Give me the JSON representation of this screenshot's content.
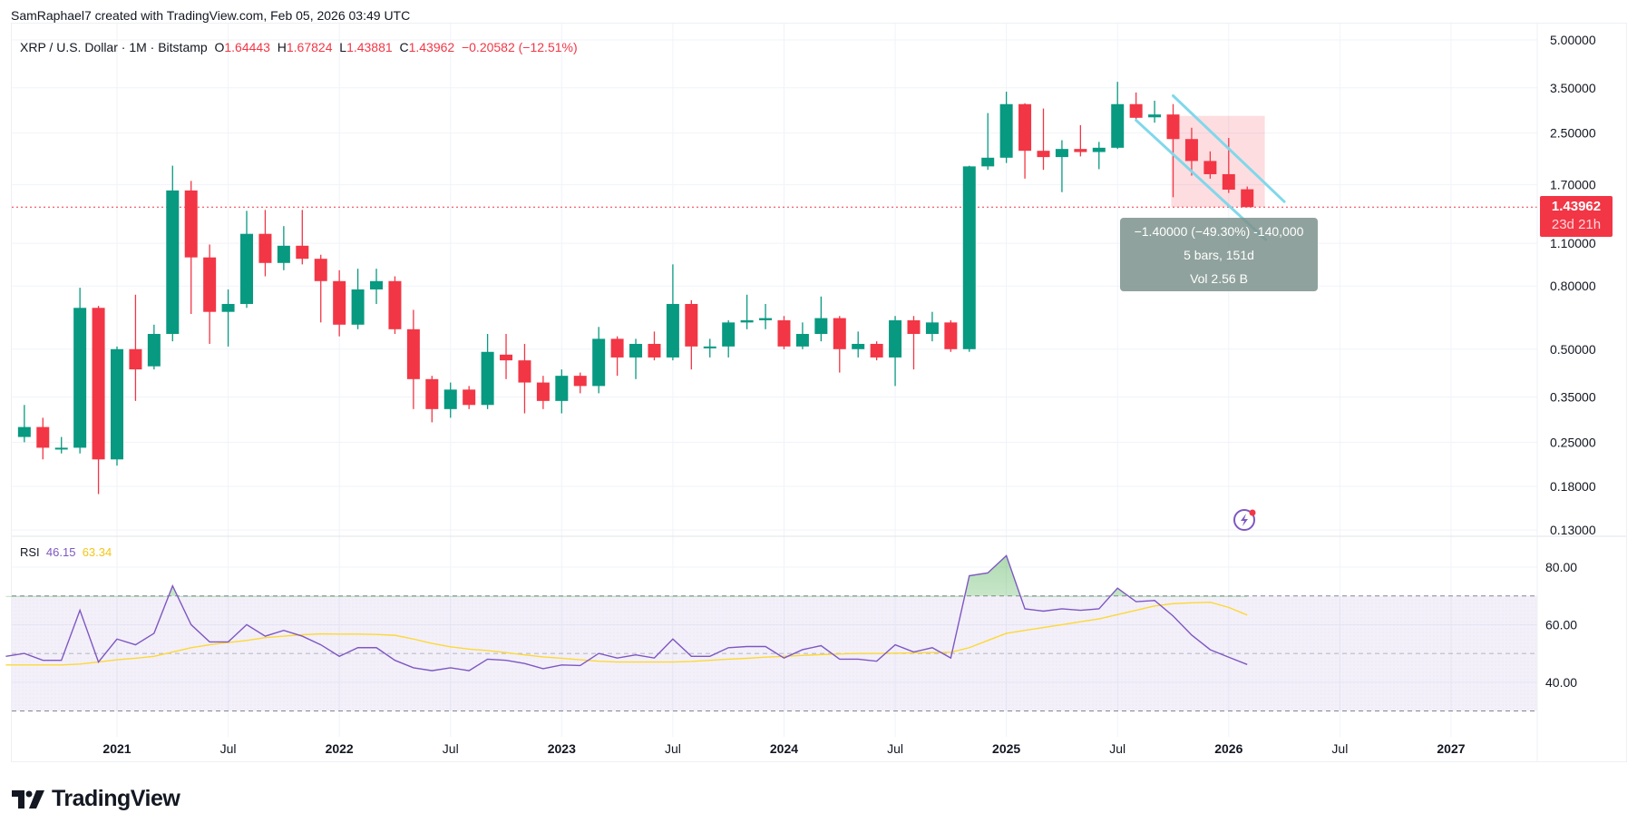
{
  "credit": "SamRaphael7 created with TradingView.com, Feb 05, 2026 03:49 UTC",
  "legend": {
    "symbol": "XRP / U.S. Dollar · 1M · Bitstamp",
    "o_label": "O",
    "o": "1.64443",
    "h_label": "H",
    "h": "1.67824",
    "l_label": "L",
    "l": "1.43881",
    "c_label": "C",
    "c": "1.43962",
    "change": "−0.20582 (−12.51%)"
  },
  "price_tag": {
    "price": "1.43962",
    "countdown": "23d 21h"
  },
  "measure": {
    "line1": "−1.40000 (−49.30%) -140,000",
    "line2": "5 bars, 151d",
    "line3": "Vol 2.56 B"
  },
  "rsi_legend": {
    "label": "RSI",
    "rsi": "46.15",
    "ma": "63.34"
  },
  "logo": {
    "text": "TradingView"
  },
  "colors": {
    "up": "#089981",
    "down": "#f23645",
    "rsi": "#7e57c2",
    "rsi_ma": "#fdd835",
    "channel": "#80d8ea",
    "measure_box": "#f23645"
  },
  "chart_data": [
    {
      "type": "candlestick",
      "title": "XRP / U.S. Dollar · 1M · Bitstamp",
      "y_scale": "log",
      "y_ticks": [
        "5.00000",
        "3.50000",
        "2.50000",
        "1.70000",
        "1.10000",
        "0.80000",
        "0.50000",
        "0.35000",
        "0.25000",
        "0.18000",
        "0.13000"
      ],
      "y_tick_values": [
        5.0,
        3.5,
        2.5,
        1.7,
        1.1,
        0.8,
        0.5,
        0.35,
        0.25,
        0.18,
        0.13
      ],
      "x_ticks": [
        "2021",
        "Jul",
        "2022",
        "Jul",
        "2023",
        "Jul",
        "2024",
        "Jul",
        "2025",
        "Jul",
        "2026",
        "Jul",
        "2027"
      ],
      "x_ticks_dates": [
        "2021-01",
        "2021-07",
        "2022-01",
        "2022-07",
        "2023-01",
        "2023-07",
        "2024-01",
        "2024-07",
        "2025-01",
        "2025-07",
        "2026-01",
        "2026-07",
        "2027-01"
      ],
      "grid": true,
      "current_price": 1.43962,
      "start_month": "2020-08",
      "ohlc": [
        [
          0.26,
          0.33,
          0.25,
          0.28
        ],
        [
          0.28,
          0.3,
          0.22,
          0.24
        ],
        [
          0.24,
          0.26,
          0.23,
          0.24
        ],
        [
          0.24,
          0.79,
          0.23,
          0.68
        ],
        [
          0.68,
          0.69,
          0.17,
          0.22
        ],
        [
          0.22,
          0.51,
          0.21,
          0.5
        ],
        [
          0.5,
          0.75,
          0.34,
          0.43
        ],
        [
          0.44,
          0.6,
          0.43,
          0.56
        ],
        [
          0.56,
          1.96,
          0.53,
          1.63
        ],
        [
          1.63,
          1.75,
          0.65,
          0.99
        ],
        [
          0.99,
          1.09,
          0.52,
          0.66
        ],
        [
          0.66,
          0.78,
          0.51,
          0.7
        ],
        [
          0.7,
          1.4,
          0.68,
          1.18
        ],
        [
          1.18,
          1.41,
          0.86,
          0.95
        ],
        [
          0.95,
          1.25,
          0.9,
          1.08
        ],
        [
          1.08,
          1.41,
          0.94,
          0.98
        ],
        [
          0.98,
          1.01,
          0.61,
          0.83
        ],
        [
          0.83,
          0.9,
          0.55,
          0.6
        ],
        [
          0.6,
          0.91,
          0.58,
          0.78
        ],
        [
          0.78,
          0.91,
          0.7,
          0.83
        ],
        [
          0.83,
          0.86,
          0.56,
          0.58
        ],
        [
          0.58,
          0.67,
          0.32,
          0.4
        ],
        [
          0.4,
          0.41,
          0.29,
          0.32
        ],
        [
          0.32,
          0.39,
          0.3,
          0.37
        ],
        [
          0.37,
          0.38,
          0.32,
          0.33
        ],
        [
          0.33,
          0.56,
          0.32,
          0.49
        ],
        [
          0.48,
          0.56,
          0.4,
          0.46
        ],
        [
          0.46,
          0.52,
          0.31,
          0.39
        ],
        [
          0.39,
          0.41,
          0.32,
          0.34
        ],
        [
          0.34,
          0.43,
          0.31,
          0.41
        ],
        [
          0.41,
          0.42,
          0.36,
          0.38
        ],
        [
          0.38,
          0.59,
          0.36,
          0.54
        ],
        [
          0.54,
          0.55,
          0.41,
          0.47
        ],
        [
          0.47,
          0.54,
          0.4,
          0.52
        ],
        [
          0.52,
          0.57,
          0.46,
          0.47
        ],
        [
          0.47,
          0.94,
          0.46,
          0.7
        ],
        [
          0.7,
          0.72,
          0.43,
          0.51
        ],
        [
          0.51,
          0.54,
          0.47,
          0.51
        ],
        [
          0.51,
          0.62,
          0.47,
          0.61
        ],
        [
          0.61,
          0.75,
          0.58,
          0.62
        ],
        [
          0.62,
          0.7,
          0.58,
          0.63
        ],
        [
          0.62,
          0.64,
          0.5,
          0.51
        ],
        [
          0.51,
          0.61,
          0.5,
          0.56
        ],
        [
          0.56,
          0.74,
          0.53,
          0.63
        ],
        [
          0.63,
          0.64,
          0.42,
          0.5
        ],
        [
          0.5,
          0.57,
          0.47,
          0.52
        ],
        [
          0.52,
          0.53,
          0.46,
          0.47
        ],
        [
          0.47,
          0.64,
          0.38,
          0.62
        ],
        [
          0.62,
          0.64,
          0.43,
          0.56
        ],
        [
          0.56,
          0.66,
          0.53,
          0.61
        ],
        [
          0.61,
          0.62,
          0.49,
          0.5
        ],
        [
          0.5,
          1.96,
          0.49,
          1.95
        ],
        [
          1.95,
          2.9,
          1.9,
          2.08
        ],
        [
          2.08,
          3.4,
          2.0,
          3.1
        ],
        [
          3.1,
          3.12,
          1.78,
          2.19
        ],
        [
          2.19,
          3.0,
          1.9,
          2.09
        ],
        [
          2.09,
          2.37,
          1.61,
          2.22
        ],
        [
          2.22,
          2.65,
          2.1,
          2.17
        ],
        [
          2.17,
          2.34,
          1.91,
          2.24
        ],
        [
          2.24,
          3.66,
          2.22,
          3.1
        ],
        [
          3.1,
          3.38,
          2.74,
          2.8
        ],
        [
          2.81,
          3.18,
          2.7,
          2.87
        ],
        [
          2.87,
          3.1,
          1.55,
          2.39
        ],
        [
          2.39,
          2.6,
          1.82,
          2.03
        ],
        [
          2.03,
          2.18,
          1.78,
          1.84
        ],
        [
          1.84,
          2.41,
          1.6,
          1.64
        ],
        [
          1.64443,
          1.67824,
          1.43881,
          1.43962
        ]
      ],
      "annotations": {
        "measure_range": {
          "from_month": "2025-10",
          "bars": 5,
          "price_from": 2.84,
          "price_to": 1.44
        },
        "channel_upper": [
          [
            "2025-10",
            3.3
          ],
          [
            "2026-04",
            1.5
          ]
        ],
        "channel_lower": [
          [
            "2025-08",
            2.75
          ],
          [
            "2026-03",
            1.13
          ]
        ]
      }
    },
    {
      "type": "line",
      "title": "RSI",
      "y_ticks": [
        "80.00",
        "60.00",
        "40.00"
      ],
      "y_tick_values": [
        80,
        60,
        40
      ],
      "bands": [
        70,
        50,
        30
      ],
      "start_month": "2020-07",
      "series": [
        {
          "name": "RSI",
          "color": "#7e57c2",
          "values": [
            49,
            50,
            47.6,
            47.6,
            65,
            47,
            55,
            53,
            57,
            73.5,
            60,
            54,
            54,
            60,
            56,
            58,
            56,
            53,
            49,
            52,
            52,
            47.6,
            45,
            44,
            45,
            44,
            48,
            47.6,
            46.5,
            44.7,
            46,
            45.8,
            50,
            48.4,
            49.5,
            48.4,
            55,
            49,
            49,
            52,
            52.4,
            52.4,
            48.4,
            51.3,
            52.7,
            48,
            48,
            47.3,
            53,
            50.5,
            52,
            48.4,
            77,
            78,
            84,
            65.5,
            64.7,
            65.5,
            65,
            65.5,
            72.7,
            68,
            68.4,
            63,
            56.4,
            51.3,
            48.7,
            46.15
          ]
        },
        {
          "name": "MA",
          "color": "#fdd835",
          "values": [
            46,
            46,
            46,
            46,
            46.3,
            47,
            47.8,
            48.3,
            49,
            50.5,
            52,
            53,
            53.8,
            54.5,
            55.5,
            56,
            56.5,
            56.8,
            56.7,
            56.7,
            56.6,
            56.3,
            55,
            53.5,
            52.3,
            51.5,
            51,
            50.3,
            49.5,
            48.8,
            48.3,
            47.8,
            47.3,
            47,
            47,
            47,
            47,
            47.2,
            47.6,
            48,
            48.3,
            48.7,
            49,
            49.3,
            49.6,
            49.8,
            50,
            50,
            50.1,
            50.2,
            50.3,
            50.4,
            52,
            54.5,
            57,
            58,
            59,
            60,
            61,
            62,
            63.5,
            65,
            66.5,
            67.3,
            67.6,
            67.8,
            66,
            63.34
          ]
        }
      ]
    }
  ]
}
